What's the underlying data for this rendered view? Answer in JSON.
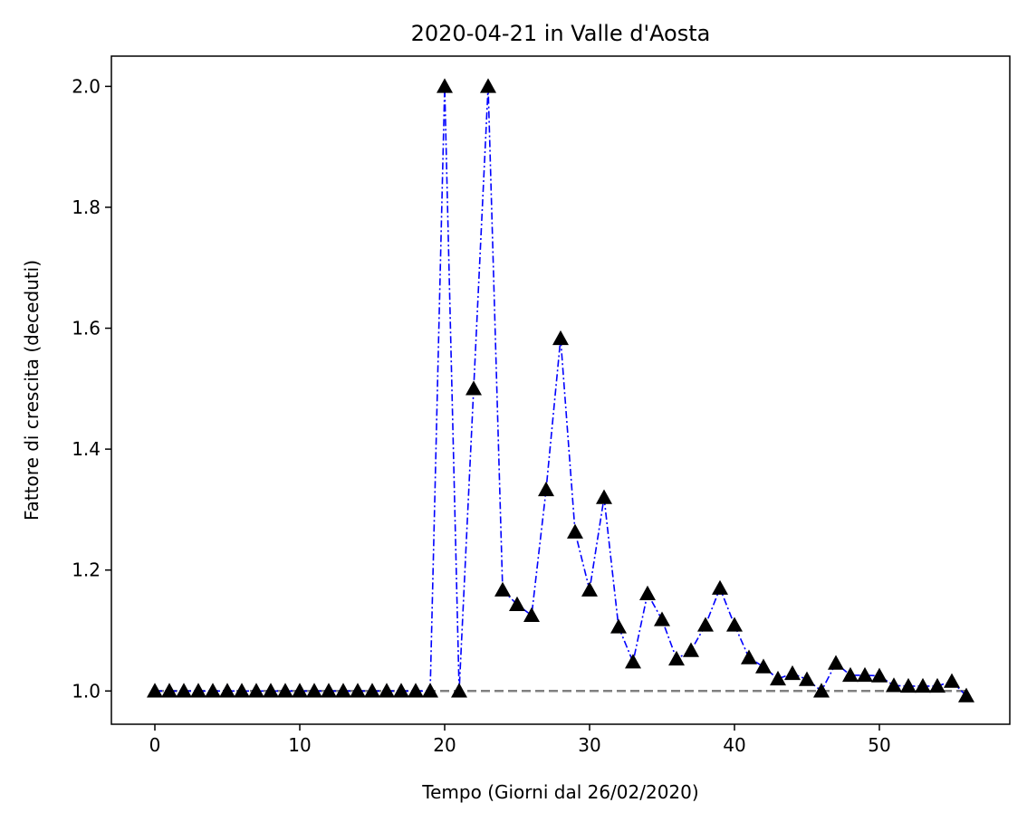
{
  "chart_data": {
    "type": "line",
    "title": "2020-04-21 in Valle d'Aosta",
    "xlabel": "Tempo (Giorni dal 26/02/2020)",
    "ylabel": "Fattore di crescita (deceduti)",
    "xlim": [
      -3,
      59
    ],
    "ylim": [
      0.945,
      2.05
    ],
    "xticks": [
      0,
      10,
      20,
      30,
      40,
      50
    ],
    "yticks": [
      1.0,
      1.2,
      1.4,
      1.6,
      1.8,
      2.0
    ],
    "xtick_labels": [
      "0",
      "10",
      "20",
      "30",
      "40",
      "50"
    ],
    "ytick_labels": [
      "1.0",
      "1.2",
      "1.4",
      "1.6",
      "1.8",
      "2.0"
    ],
    "grid": false,
    "legend": "none",
    "reference_line": {
      "y": 1.0,
      "x_from": 0,
      "x_to": 56,
      "style": "dashed",
      "color": "#808080"
    },
    "series": [
      {
        "line_color": "#0000ff",
        "line_style": "dashdot",
        "marker": "triangle-up",
        "marker_color": "#000000",
        "x": [
          0,
          1,
          2,
          3,
          4,
          5,
          6,
          7,
          8,
          9,
          10,
          11,
          12,
          13,
          14,
          15,
          16,
          17,
          18,
          19,
          20,
          21,
          22,
          23,
          24,
          25,
          26,
          27,
          28,
          29,
          30,
          31,
          32,
          33,
          34,
          35,
          36,
          37,
          38,
          39,
          40,
          41,
          42,
          43,
          44,
          45,
          46,
          47,
          48,
          49,
          50,
          51,
          52,
          53,
          54,
          55,
          56
        ],
        "values": [
          1.0,
          1.0,
          1.0,
          1.0,
          1.0,
          1.0,
          1.0,
          1.0,
          1.0,
          1.0,
          1.0,
          1.0,
          1.0,
          1.0,
          1.0,
          1.0,
          1.0,
          1.0,
          1.0,
          1.0,
          2.0,
          1.0,
          1.5,
          2.0,
          1.167,
          1.143,
          1.125,
          1.333,
          1.583,
          1.263,
          1.167,
          1.32,
          1.106,
          1.048,
          1.161,
          1.118,
          1.053,
          1.067,
          1.109,
          1.17,
          1.109,
          1.055,
          1.04,
          1.02,
          1.029,
          1.019,
          1.0,
          1.046,
          1.026,
          1.026,
          1.025,
          1.009,
          1.008,
          1.008,
          1.008,
          1.016,
          0.992
        ]
      }
    ]
  }
}
